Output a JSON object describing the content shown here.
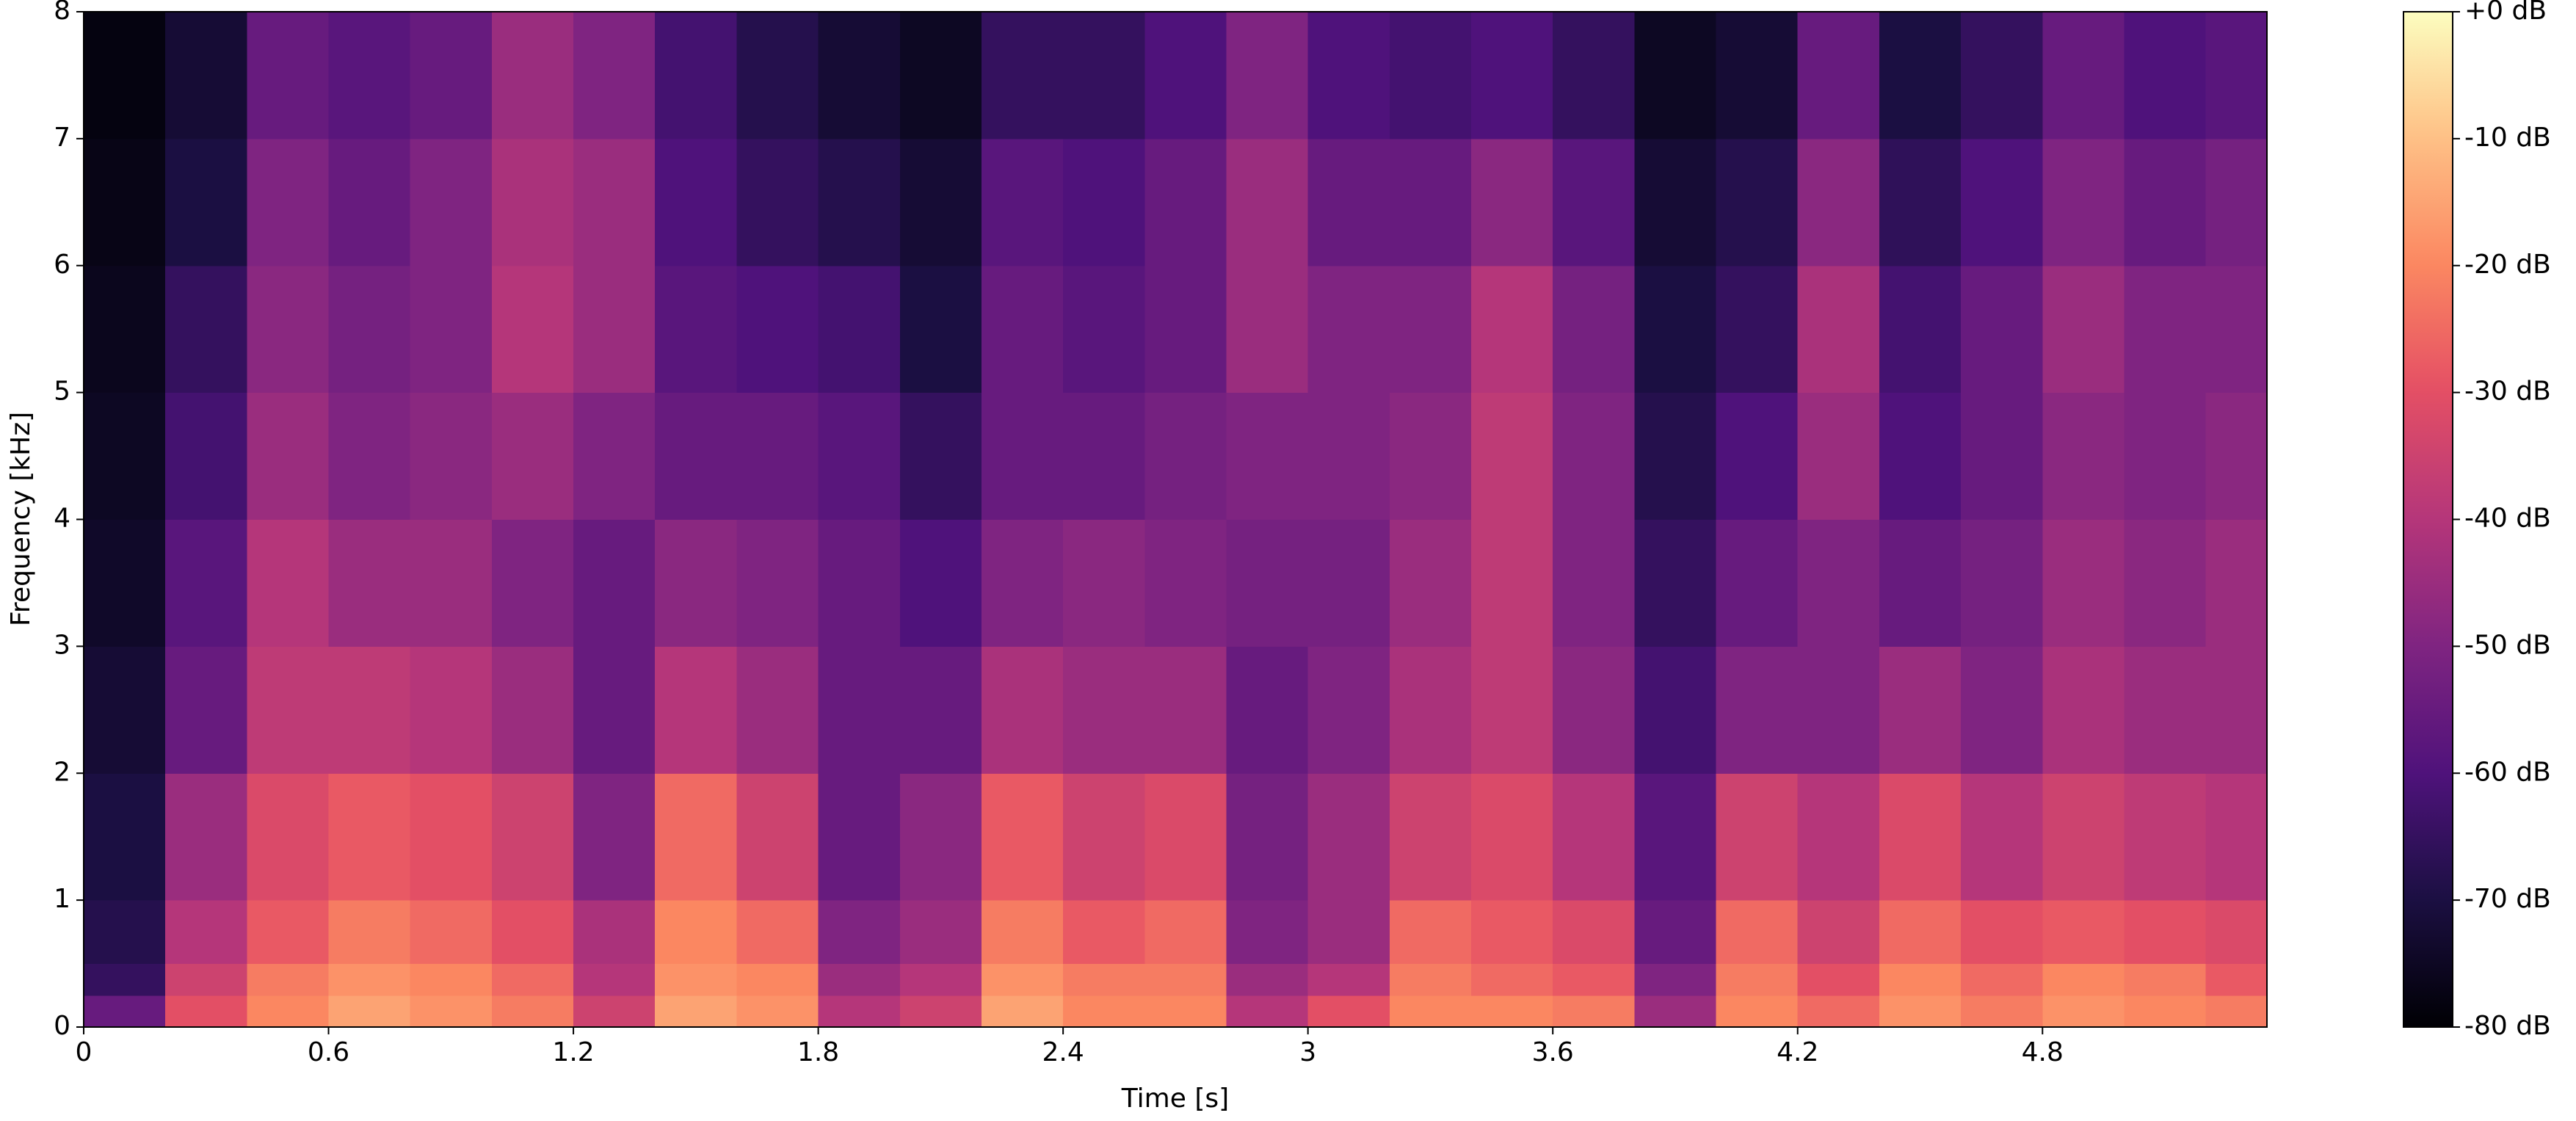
{
  "chart_data": {
    "type": "spectrogram",
    "xlabel": "Time [s]",
    "ylabel": "Frequency [kHz]",
    "xlim": [
      0,
      5.35
    ],
    "ylim": [
      0,
      8
    ],
    "xticks": [
      0,
      0.6,
      1.2,
      1.8,
      2.4,
      3,
      3.6,
      4.2,
      4.8
    ],
    "yticks": [
      0,
      1,
      2,
      3,
      4,
      5,
      6,
      7,
      8
    ],
    "colormap": "magma",
    "xbins": [
      0,
      0.2,
      0.4,
      0.6,
      0.8,
      1.0,
      1.2,
      1.4,
      1.6,
      1.8,
      2.0,
      2.2,
      2.4,
      2.6,
      2.8,
      3.0,
      3.2,
      3.4,
      3.6,
      3.8,
      4.0,
      4.2,
      4.4,
      4.6,
      4.8,
      5.0,
      5.2,
      5.35
    ],
    "ybins": [
      0,
      0.25,
      0.5,
      1,
      2,
      3,
      4,
      5,
      6,
      7,
      8
    ],
    "values": [
      [
        -55,
        -65,
        -68,
        -70,
        -72,
        -74,
        -75,
        -76,
        -77,
        -78
      ],
      [
        -30,
        -35,
        -40,
        -45,
        -55,
        -58,
        -62,
        -65,
        -70,
        -72
      ],
      [
        -20,
        -22,
        -28,
        -32,
        -38,
        -40,
        -45,
        -48,
        -50,
        -55
      ],
      [
        -15,
        -18,
        -22,
        -28,
        -38,
        -45,
        -50,
        -52,
        -55,
        -58
      ],
      [
        -18,
        -20,
        -25,
        -30,
        -40,
        -45,
        -48,
        -50,
        -50,
        -55
      ],
      [
        -22,
        -25,
        -30,
        -35,
        -45,
        -50,
        -45,
        -40,
        -42,
        -45
      ],
      [
        -35,
        -40,
        -42,
        -50,
        -55,
        -55,
        -50,
        -45,
        -45,
        -50
      ],
      [
        -15,
        -18,
        -20,
        -25,
        -40,
        -48,
        -55,
        -58,
        -60,
        -62
      ],
      [
        -18,
        -20,
        -25,
        -35,
        -45,
        -50,
        -55,
        -60,
        -65,
        -68
      ],
      [
        -40,
        -45,
        -50,
        -55,
        -55,
        -55,
        -58,
        -62,
        -68,
        -72
      ],
      [
        -35,
        -40,
        -45,
        -48,
        -55,
        -60,
        -65,
        -70,
        -72,
        -75
      ],
      [
        -15,
        -18,
        -22,
        -28,
        -42,
        -50,
        -55,
        -55,
        -58,
        -65
      ],
      [
        -20,
        -22,
        -28,
        -35,
        -45,
        -48,
        -55,
        -58,
        -60,
        -65
      ],
      [
        -20,
        -22,
        -25,
        -32,
        -45,
        -50,
        -52,
        -55,
        -55,
        -60
      ],
      [
        -40,
        -45,
        -50,
        -52,
        -55,
        -52,
        -50,
        -45,
        -45,
        -50
      ],
      [
        -30,
        -40,
        -45,
        -45,
        -50,
        -52,
        -50,
        -50,
        -55,
        -60
      ],
      [
        -20,
        -22,
        -25,
        -35,
        -42,
        -45,
        -48,
        -50,
        -55,
        -62
      ],
      [
        -20,
        -25,
        -28,
        -32,
        -38,
        -38,
        -38,
        -40,
        -48,
        -60
      ],
      [
        -22,
        -28,
        -32,
        -40,
        -48,
        -50,
        -50,
        -52,
        -58,
        -65
      ],
      [
        -45,
        -50,
        -55,
        -58,
        -62,
        -65,
        -68,
        -70,
        -72,
        -75
      ],
      [
        -20,
        -22,
        -25,
        -35,
        -50,
        -55,
        -60,
        -65,
        -68,
        -72
      ],
      [
        -25,
        -30,
        -35,
        -40,
        -50,
        -50,
        -45,
        -42,
        -48,
        -55
      ],
      [
        -18,
        -20,
        -25,
        -32,
        -45,
        -55,
        -60,
        -62,
        -66,
        -70
      ],
      [
        -22,
        -25,
        -30,
        -40,
        -50,
        -52,
        -55,
        -55,
        -60,
        -65
      ],
      [
        -18,
        -20,
        -28,
        -35,
        -42,
        -45,
        -48,
        -45,
        -50,
        -55
      ],
      [
        -20,
        -22,
        -30,
        -38,
        -45,
        -48,
        -50,
        -50,
        -55,
        -60
      ],
      [
        -22,
        -28,
        -32,
        -40,
        -45,
        -45,
        -48,
        -50,
        -52,
        -58
      ]
    ],
    "colorbar": {
      "clim": [
        -80,
        0
      ],
      "ticks": [
        {
          "value": 0,
          "label": "+0 dB"
        },
        {
          "value": -10,
          "label": "-10 dB"
        },
        {
          "value": -20,
          "label": "-20 dB"
        },
        {
          "value": -30,
          "label": "-30 dB"
        },
        {
          "value": -40,
          "label": "-40 dB"
        },
        {
          "value": -50,
          "label": "-50 dB"
        },
        {
          "value": -60,
          "label": "-60 dB"
        },
        {
          "value": -70,
          "label": "-70 dB"
        },
        {
          "value": -80,
          "label": "-80 dB"
        }
      ]
    }
  }
}
